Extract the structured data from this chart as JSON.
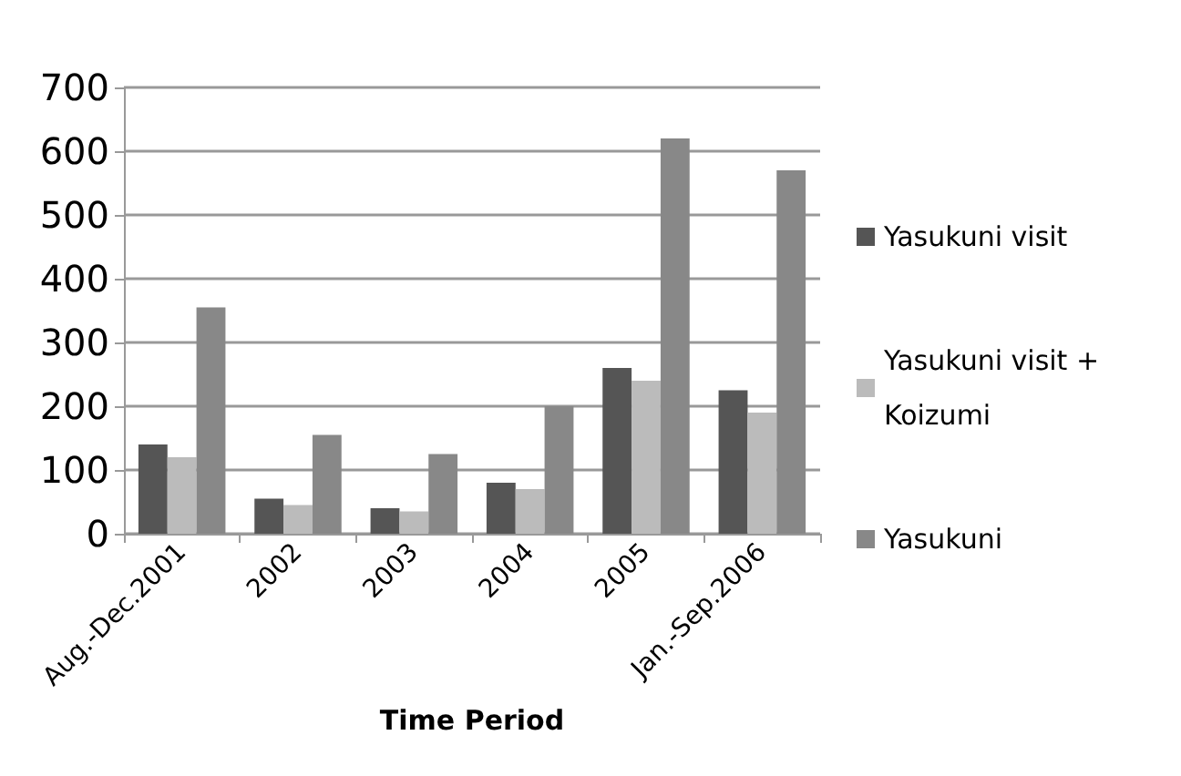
{
  "chart_data": {
    "type": "bar",
    "xlabel": "Time Period",
    "categories": [
      "Aug.-Dec.2001",
      "2002",
      "2003",
      "2004",
      "2005",
      "Jan.-Sep.2006"
    ],
    "series": [
      {
        "name": "Yasukuni visit",
        "color": "#555555",
        "values": [
          140,
          55,
          40,
          80,
          260,
          225
        ]
      },
      {
        "name": "Yasukuni visit + Koizumi",
        "color": "#bbbbbb",
        "values": [
          120,
          45,
          35,
          70,
          240,
          190
        ]
      },
      {
        "name": "Yasukuni",
        "color": "#888888",
        "values": [
          355,
          155,
          125,
          200,
          620,
          570
        ]
      }
    ],
    "ylim": [
      0,
      700
    ],
    "yticks": [
      0,
      100,
      200,
      300,
      400,
      500,
      600,
      700
    ],
    "grid": "y",
    "legend": "right"
  }
}
